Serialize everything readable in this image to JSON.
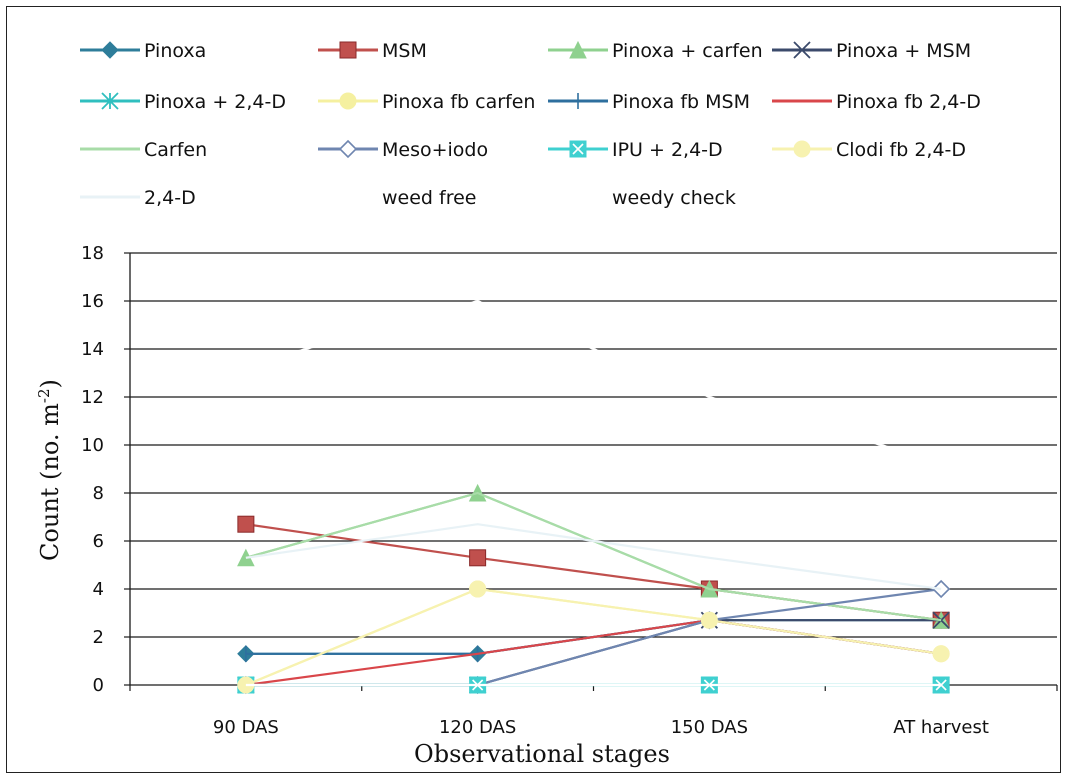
{
  "chart_data": {
    "type": "line",
    "title": "",
    "xlabel": "Observational stages",
    "ylabel": "Count (no. m",
    "ylabel_sup": "-2",
    "ylabel_close": ")",
    "categories": [
      "90 DAS",
      "120 DAS",
      "150 DAS",
      "AT harvest"
    ],
    "ylim": [
      0,
      18
    ],
    "yticks": [
      "0",
      "2",
      "4",
      "6",
      "8",
      "10",
      "12",
      "14",
      "16",
      "18"
    ],
    "grid": true,
    "legend_position": "top",
    "series": [
      {
        "name": "Pinoxa",
        "color": "#2e7d9a",
        "marker": "diamond-icon",
        "values": [
          1.3,
          1.3,
          2.7,
          2.7
        ]
      },
      {
        "name": "MSM",
        "color": "#c0504d",
        "marker": "square-icon",
        "values": [
          6.7,
          5.3,
          4.0,
          2.7
        ]
      },
      {
        "name": "Pinoxa + carfen",
        "color": "#8fd18f",
        "marker": "triangle-icon",
        "values": [
          5.3,
          8.0,
          4.0,
          2.7
        ]
      },
      {
        "name": "Pinoxa + MSM",
        "color": "#3b4a6b",
        "marker": "x-icon",
        "values": [
          0,
          0,
          2.7,
          2.7
        ]
      },
      {
        "name": "Pinoxa + 2,4-D",
        "color": "#2fbfbf",
        "marker": "asterisk-icon",
        "values": [
          0,
          0,
          0,
          0
        ]
      },
      {
        "name": "Pinoxa fb carfen",
        "color": "#f5f0a0",
        "marker": "circle-icon",
        "values": [
          0,
          4.0,
          2.7,
          1.3
        ]
      },
      {
        "name": "Pinoxa fb MSM",
        "color": "#2e6f9e",
        "marker": "plus-icon",
        "values": [
          1.3,
          1.3,
          2.7,
          1.3
        ]
      },
      {
        "name": "Pinoxa fb 2,4-D",
        "color": "#d9464a",
        "marker": "dash-icon",
        "values": [
          0,
          1.3,
          2.7,
          1.3
        ]
      },
      {
        "name": "Carfen",
        "color": "#a8dca8",
        "marker": "dash-icon",
        "values": [
          5.3,
          8.0,
          4.0,
          2.7
        ]
      },
      {
        "name": "Meso+iodo",
        "color": "#6f86b0",
        "marker": "open-diamond-icon",
        "values": [
          0,
          0,
          2.7,
          4.0
        ]
      },
      {
        "name": "IPU + 2,4-D",
        "color": "#3fd0d0",
        "marker": "square-x-icon",
        "values": [
          0,
          0,
          0,
          0
        ]
      },
      {
        "name": "Clodi fb 2,4-D",
        "color": "#f7f2b0",
        "marker": "circle-icon",
        "values": [
          0,
          4.0,
          2.7,
          1.3
        ]
      },
      {
        "name": "2,4-D",
        "color": "#e8f2f6",
        "marker": "dash-icon",
        "values": [
          5.3,
          6.7,
          5.3,
          4.0
        ]
      },
      {
        "name": "weed free",
        "color": "#ffffff",
        "marker": "none",
        "values": [
          0,
          0,
          0,
          0
        ]
      },
      {
        "name": "weedy check",
        "color": "#ffffff",
        "marker": "none",
        "values": [
          13.3,
          16.0,
          12.0,
          9.3
        ]
      }
    ]
  }
}
